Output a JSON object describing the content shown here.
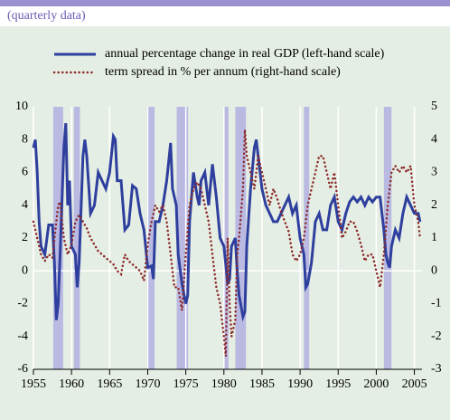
{
  "chart_data": {
    "type": "line",
    "subtitle": "(quarterly data)",
    "xlim": [
      1955,
      2006
    ],
    "xticks": [
      1955,
      1960,
      1965,
      1970,
      1975,
      1980,
      1985,
      1990,
      1995,
      2000,
      2005
    ],
    "ylim": [
      -6,
      10
    ],
    "yticks": [
      -6,
      -4,
      -2,
      0,
      2,
      4,
      6,
      8,
      10
    ],
    "y2lim": [
      -3,
      5
    ],
    "y2ticks": [
      -3,
      -2,
      -1,
      0,
      1,
      2,
      3,
      4,
      5
    ],
    "shaded_periods": [
      [
        1957.6,
        1958.9
      ],
      [
        1960.3,
        1961.1
      ],
      [
        1969.9,
        1970.9
      ],
      [
        1973.8,
        1975.3
      ],
      [
        1980.0,
        1980.6
      ],
      [
        1981.5,
        1982.9
      ],
      [
        1990.5,
        1991.2
      ],
      [
        2001.0,
        2002.0
      ]
    ],
    "series": [
      {
        "name": "annual percentage change in real GDP (left-hand scale)",
        "color": "#2e3f9e",
        "style": "solid",
        "x": [
          1955,
          1955.25,
          1955.5,
          1955.75,
          1956,
          1956.5,
          1957,
          1957.5,
          1957.75,
          1958,
          1958.25,
          1958.5,
          1959,
          1959.25,
          1959.5,
          1959.75,
          1960,
          1960.5,
          1960.75,
          1961,
          1961.5,
          1961.75,
          1962,
          1962.5,
          1963,
          1963.5,
          1964,
          1964.5,
          1965,
          1965.5,
          1965.75,
          1966,
          1966.5,
          1967,
          1967.5,
          1968,
          1968.5,
          1969,
          1969.5,
          1970,
          1970.5,
          1970.75,
          1971,
          1971.5,
          1972,
          1972.5,
          1973,
          1973.25,
          1973.75,
          1974,
          1974.5,
          1975,
          1975.25,
          1975.5,
          1976,
          1976.5,
          1976.75,
          1977,
          1977.5,
          1978,
          1978.5,
          1979,
          1979.5,
          1980,
          1980.5,
          1980.75,
          1981,
          1981.5,
          1981.75,
          1982,
          1982.5,
          1982.75,
          1983,
          1983.5,
          1984,
          1984.25,
          1984.5,
          1985,
          1985.5,
          1986,
          1986.5,
          1987,
          1987.5,
          1988,
          1988.5,
          1989,
          1989.5,
          1990,
          1990.5,
          1990.75,
          1991,
          1991.5,
          1992,
          1992.5,
          1993,
          1993.5,
          1994,
          1994.5,
          1995,
          1995.5,
          1996,
          1996.5,
          1997,
          1997.5,
          1998,
          1998.5,
          1999,
          1999.5,
          2000,
          2000.5,
          2001,
          2001.25,
          2001.5,
          2001.75,
          2002,
          2002.5,
          2003,
          2003.5,
          2004,
          2004.5,
          2005,
          2005.5,
          2005.75
        ],
        "values": [
          7.5,
          8,
          6,
          3,
          1.5,
          1,
          2.8,
          2.8,
          0.5,
          -3,
          -2,
          1,
          7.5,
          9,
          4,
          5.5,
          1.5,
          1,
          -1,
          0.5,
          7,
          8,
          7,
          3.5,
          4,
          6,
          5.5,
          5,
          6,
          8.2,
          8,
          5.5,
          5.5,
          2.5,
          2.8,
          5.2,
          5,
          3.5,
          2.5,
          0.2,
          0.3,
          -0.5,
          3,
          3,
          4,
          5.5,
          7.8,
          5,
          4,
          1,
          -0.8,
          -2,
          -1.5,
          3,
          6,
          4.5,
          4,
          5.5,
          6,
          4,
          6.5,
          4.5,
          2,
          1.5,
          -0.8,
          -0.5,
          1.5,
          2,
          0,
          -1.5,
          -2.8,
          -2.5,
          1.5,
          5,
          7.5,
          8,
          7,
          5,
          4,
          3.5,
          3,
          3,
          3.5,
          4,
          4.5,
          3.5,
          4,
          2,
          1,
          -1,
          -0.8,
          0.5,
          3,
          3.5,
          2.5,
          2.5,
          4,
          4.5,
          3,
          2.5,
          3.5,
          4.2,
          4.5,
          4.2,
          4.5,
          4,
          4.5,
          4.2,
          4.5,
          4.5,
          2.5,
          1,
          0.5,
          0.2,
          1.5,
          2.5,
          2,
          3.5,
          4.5,
          4,
          3.5,
          3.5,
          3
        ]
      },
      {
        "name": "term spread in % per annum (right-hand scale)",
        "color": "#8b2a2a",
        "style": "dotted",
        "axis": "y2",
        "x": [
          1955,
          1955.5,
          1956,
          1956.5,
          1957,
          1957.5,
          1958,
          1958.25,
          1958.5,
          1959,
          1959.5,
          1960,
          1960.5,
          1961,
          1961.5,
          1962,
          1962.5,
          1963,
          1963.5,
          1964,
          1964.5,
          1965,
          1965.5,
          1966,
          1966.5,
          1967,
          1967.5,
          1968,
          1968.5,
          1969,
          1969.5,
          1970,
          1970.5,
          1971,
          1971.5,
          1972,
          1972.5,
          1973,
          1973.5,
          1974,
          1974.5,
          1975,
          1975.5,
          1976,
          1976.5,
          1977,
          1977.5,
          1978,
          1978.5,
          1979,
          1979.5,
          1980,
          1980.25,
          1980.5,
          1980.75,
          1981,
          1981.5,
          1981.75,
          1982,
          1982.5,
          1982.75,
          1983,
          1983.5,
          1984,
          1984.5,
          1985,
          1985.5,
          1986,
          1986.5,
          1987,
          1987.5,
          1988,
          1988.5,
          1989,
          1989.5,
          1990,
          1990.5,
          1991,
          1991.5,
          1992,
          1992.5,
          1993,
          1993.5,
          1994,
          1994.5,
          1995,
          1995.5,
          1996,
          1996.5,
          1997,
          1997.5,
          1998,
          1998.5,
          1999,
          1999.5,
          2000,
          2000.5,
          2001,
          2001.5,
          2002,
          2002.5,
          2003,
          2003.5,
          2004,
          2004.5,
          2005,
          2005.5,
          2005.75
        ],
        "values": [
          1.5,
          1,
          0.5,
          0.3,
          0.5,
          0.4,
          1.5,
          2,
          2.1,
          1,
          0.5,
          0.8,
          1.5,
          1.7,
          1.5,
          1.3,
          1,
          0.8,
          0.6,
          0.5,
          0.4,
          0.3,
          0.2,
          0,
          -0.1,
          0.5,
          0.3,
          0.2,
          0.1,
          0,
          -0.3,
          0.8,
          1.5,
          2,
          1.8,
          2,
          1.5,
          0.5,
          -0.5,
          -0.5,
          -1.2,
          0.5,
          2,
          2.5,
          2.7,
          2.5,
          2,
          1.5,
          0.5,
          -0.5,
          -1,
          -2,
          -2.6,
          1,
          -1,
          -2,
          -1.5,
          0.5,
          1,
          2.5,
          4.3,
          3.5,
          3,
          2.5,
          3.5,
          3,
          2.5,
          2,
          2.5,
          2.2,
          1.8,
          1.5,
          1.2,
          0.5,
          0.3,
          0.5,
          1,
          2,
          2.5,
          3,
          3.5,
          3.5,
          3,
          2.5,
          3,
          2,
          1,
          1.2,
          1.5,
          1.5,
          1.2,
          0.8,
          0.3,
          0.5,
          0.5,
          0,
          -0.5,
          0.5,
          2,
          3,
          3.2,
          3,
          3.2,
          3,
          3.2,
          2,
          1.5,
          1
        ]
      }
    ]
  }
}
